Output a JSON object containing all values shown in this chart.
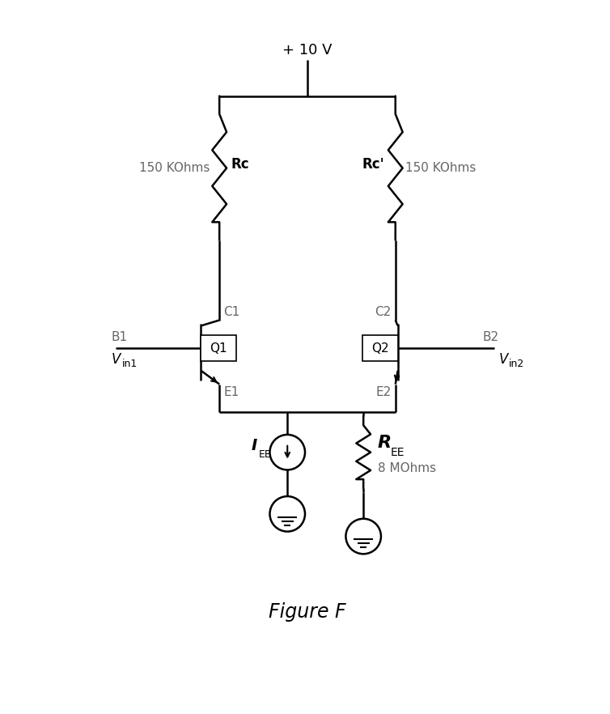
{
  "bg_color": "#ffffff",
  "line_color": "#000000",
  "lw": 1.8,
  "fig_width": 7.54,
  "fig_height": 8.82,
  "title": "+ 10 V",
  "label_150k_left": "150 KOhms",
  "label_150k_right": "150 KOhms",
  "label_Rc": "Rc",
  "label_Rcp": "Rc'",
  "label_B1": "B1",
  "label_B2": "B2",
  "label_C1": "C1",
  "label_C2": "C2",
  "label_E1": "E1",
  "label_E2": "E2",
  "label_Q1": "Q1",
  "label_Q2": "Q2",
  "label_Vin1": "V",
  "label_Vin1_sub": "in1",
  "label_Vin2": "V",
  "label_Vin2_sub": "in2",
  "label_IEE": "I",
  "label_IEE_sub": "EE",
  "label_REE": "R",
  "label_REE_sub": "EE",
  "label_8M": "8 MOhms",
  "label_figF": "Figure F",
  "gray": "#666666"
}
